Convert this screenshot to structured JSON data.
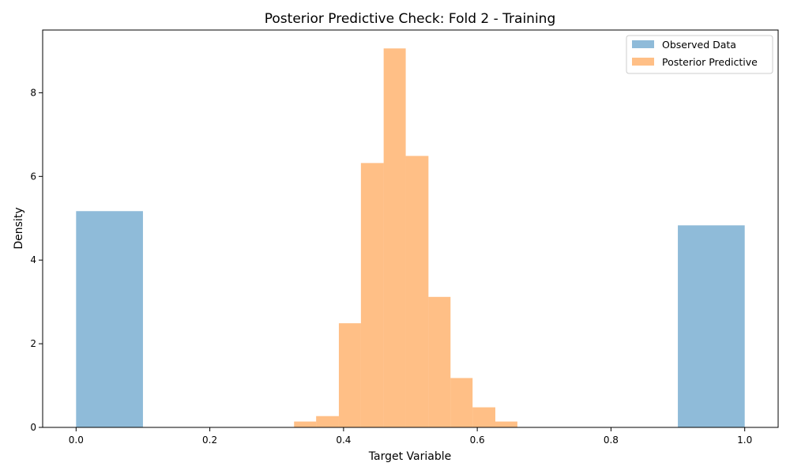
{
  "chart_data": {
    "type": "bar",
    "title": "Posterior Predictive Check: Fold 2 - Training",
    "xlabel": "Target Variable",
    "ylabel": "Density",
    "xlim": [
      -0.05,
      1.05
    ],
    "ylim": [
      0,
      9.5
    ],
    "xticks": [
      "0.0",
      "0.2",
      "0.4",
      "0.6",
      "0.8",
      "1.0"
    ],
    "xtick_values": [
      0.0,
      0.2,
      0.4,
      0.6,
      0.8,
      1.0
    ],
    "yticks": [
      "0",
      "2",
      "4",
      "6",
      "8"
    ],
    "ytick_values": [
      0,
      2,
      4,
      6,
      8
    ],
    "grid": false,
    "legend_position": "top-right",
    "series": [
      {
        "name": "Observed Data",
        "color": "#1f77b4",
        "opacity": 0.5,
        "bins": [
          {
            "x0": 0.0,
            "x1": 0.1,
            "value": 5.17
          },
          {
            "x0": 0.9,
            "x1": 1.0,
            "value": 4.83
          }
        ]
      },
      {
        "name": "Posterior Predictive",
        "color": "#ff7f0e",
        "opacity": 0.5,
        "bins": [
          {
            "x0": 0.326,
            "x1": 0.359,
            "value": 0.14
          },
          {
            "x0": 0.359,
            "x1": 0.393,
            "value": 0.27
          },
          {
            "x0": 0.393,
            "x1": 0.426,
            "value": 2.49
          },
          {
            "x0": 0.426,
            "x1": 0.46,
            "value": 6.32
          },
          {
            "x0": 0.46,
            "x1": 0.493,
            "value": 9.06
          },
          {
            "x0": 0.493,
            "x1": 0.527,
            "value": 6.49
          },
          {
            "x0": 0.527,
            "x1": 0.56,
            "value": 3.12
          },
          {
            "x0": 0.56,
            "x1": 0.593,
            "value": 1.18
          },
          {
            "x0": 0.593,
            "x1": 0.627,
            "value": 0.48
          },
          {
            "x0": 0.627,
            "x1": 0.66,
            "value": 0.14
          }
        ]
      }
    ]
  }
}
